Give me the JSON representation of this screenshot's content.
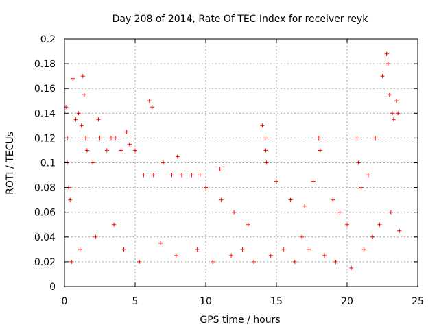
{
  "chart_data": {
    "type": "scatter",
    "title": "Day 208 of 2014, Rate Of TEC Index for receiver reyk",
    "xlabel": "GPS time / hours",
    "ylabel": "ROTI / TECUs",
    "xlim": [
      0,
      25
    ],
    "ylim": [
      0,
      0.2
    ],
    "xticks": [
      0,
      5,
      10,
      15,
      20,
      25
    ],
    "yticks": [
      0,
      0.02,
      0.04,
      0.06,
      0.08,
      0.1,
      0.12,
      0.14,
      0.16,
      0.18,
      0.2
    ],
    "grid": true,
    "marker": "+",
    "series": [
      {
        "name": "ROTI",
        "color": "#ff0000",
        "x": [
          0.1,
          0.2,
          0.2,
          0.3,
          0.4,
          0.6,
          0.8,
          1.0,
          1.2,
          1.3,
          1.4,
          1.5,
          1.6,
          2.0,
          2.4,
          2.5,
          3.0,
          3.3,
          3.6,
          4.0,
          4.4,
          4.6,
          5.0,
          5.6,
          6.0,
          6.2,
          6.3,
          7.0,
          7.6,
          8.0,
          8.3,
          9.0,
          9.6,
          10.0,
          11.0,
          11.1,
          12.0,
          13.0,
          14.0,
          14.2,
          14.25,
          14.3,
          15.0,
          16.0,
          17.0,
          17.6,
          18.0,
          18.1,
          19.0,
          19.5,
          20.0,
          20.7,
          20.8,
          21.0,
          21.5,
          22.0,
          22.5,
          22.8,
          22.9,
          23.0,
          23.2,
          23.3,
          23.5,
          23.6,
          0.5,
          1.1,
          2.2,
          3.5,
          4.2,
          5.3,
          6.8,
          7.9,
          9.4,
          10.5,
          11.8,
          12.6,
          13.4,
          14.6,
          15.5,
          16.3,
          16.8,
          17.3,
          18.4,
          19.2,
          20.3,
          21.2,
          21.8,
          22.3,
          23.1,
          23.7
        ],
        "y": [
          0.145,
          0.12,
          0.1,
          0.08,
          0.07,
          0.168,
          0.135,
          0.14,
          0.13,
          0.17,
          0.155,
          0.12,
          0.11,
          0.1,
          0.135,
          0.12,
          0.11,
          0.12,
          0.12,
          0.11,
          0.125,
          0.115,
          0.11,
          0.09,
          0.15,
          0.145,
          0.09,
          0.1,
          0.09,
          0.105,
          0.09,
          0.09,
          0.09,
          0.08,
          0.095,
          0.07,
          0.06,
          0.05,
          0.13,
          0.12,
          0.11,
          0.1,
          0.085,
          0.07,
          0.065,
          0.085,
          0.12,
          0.11,
          0.07,
          0.06,
          0.05,
          0.12,
          0.1,
          0.08,
          0.09,
          0.12,
          0.17,
          0.188,
          0.18,
          0.155,
          0.14,
          0.135,
          0.15,
          0.14,
          0.02,
          0.03,
          0.04,
          0.05,
          0.03,
          0.02,
          0.035,
          0.025,
          0.03,
          0.02,
          0.025,
          0.03,
          0.02,
          0.025,
          0.03,
          0.02,
          0.04,
          0.03,
          0.025,
          0.02,
          0.015,
          0.03,
          0.04,
          0.05,
          0.06,
          0.045
        ]
      }
    ]
  }
}
